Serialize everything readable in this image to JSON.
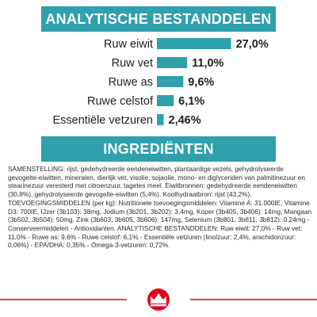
{
  "header": {
    "title": "ANALYTISCHE BESTANDDELEN"
  },
  "chart_data": {
    "type": "bar",
    "orientation": "horizontal",
    "categories": [
      "Ruw eiwit",
      "Ruw vet",
      "Ruwe as",
      "Ruwe celstof",
      "Essentiële vetzuren"
    ],
    "values": [
      27.0,
      11.0,
      9.6,
      6.1,
      2.46
    ],
    "value_labels": [
      "27,0%",
      "11,0%",
      "9,6%",
      "6,1%",
      "2,46%"
    ],
    "unit": "%",
    "bar_color": "#2fa0ac",
    "title": "ANALYTISCHE BESTANDDELEN",
    "xlabel": "",
    "ylabel": "",
    "xlim": [
      0,
      30
    ],
    "grid": false
  },
  "ingredients": {
    "title": "INGREDIËNTEN",
    "text": "SAMENSTELLING: rijst, gedehydreerde eendeneiwitten, plantaardige vezels, gehydrolyseerde gevogelte-eiwitten, mineralen, dierlijk vet, visolie, sojaolie, mono- en diglyceriden van palmitinezuur en stearinezuur veresterd met citroenzuur, tagetes meel. Eiwitbronnen: gedehydreerde eendeneiwitten (30,8%), gehydrolyseerde gevogelte-eiwitten (5,4%). Koolhydraatbron: rijst (43,2%). TOEVOEGINGSMIDDELEN (per kg): Nutritionele toevoegingsmiddelen: Vitamine A: 31.000IE, Vitamine D3: 700IE, IJzer (3b103): 38mg, Jodium (3b201, 3b202): 3,4mg, Koper (3b405, 3b406): 14mg, Mangaan (3b502, 3b504): 50mg, Zink (3b603, 3b605, 3b606): 147mg, Selenium (3b801, 3b811, 3b812): 0,24mg - Conserveermiddelen - Antioxidanten. ANALYTISCHE BESTANDDELEN: Ruw eiwit: 27,0% - Ruw vet: 11,0% - Ruwe as: 9,6% - Ruwe celstof: 6,1% - Essentiële vetzuren (linolzuur: 2,4%, arachidonzuur: 0,06%) - EPA/DHA: 0,35% - Omega-3-vetzuren: 0,72%."
  },
  "footer": {
    "logo": "royal-canin-crown-logo",
    "accent_color": "#e2001a"
  }
}
